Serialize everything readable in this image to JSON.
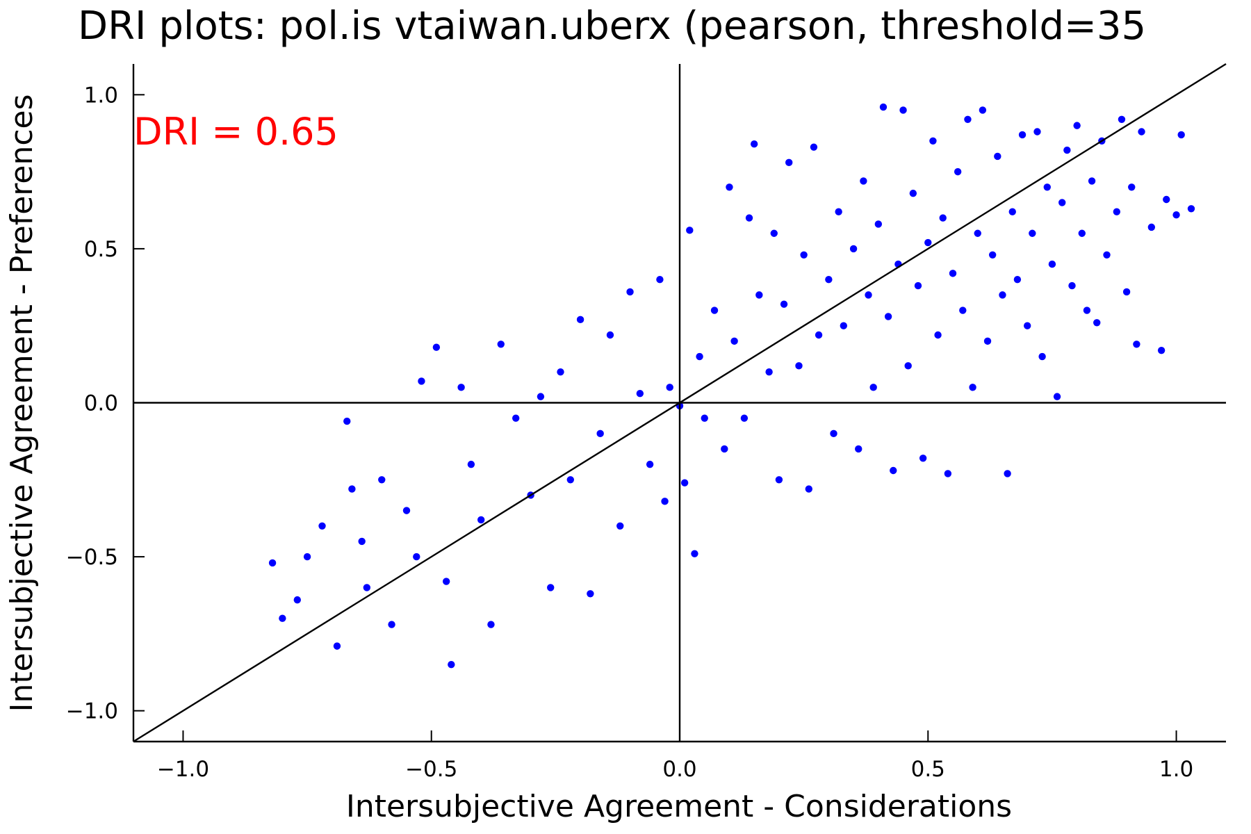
{
  "chart_data": {
    "type": "scatter",
    "title": "DRI plots: pol.is vtaiwan.uberx (pearson, threshold=35",
    "xlabel": "Intersubjective Agreement - Considerations",
    "ylabel": "Intersubjective Agreement - Preferences",
    "xlim": [
      -1.1,
      1.1
    ],
    "ylim": [
      -1.1,
      1.1
    ],
    "xticks": [
      -1.0,
      -0.5,
      0.0,
      0.5,
      1.0
    ],
    "yticks": [
      -1.0,
      -0.5,
      0.0,
      0.5,
      1.0
    ],
    "xtick_labels": [
      "−1.0",
      "−0.5",
      "0.0",
      "0.5",
      "1.0"
    ],
    "ytick_labels": [
      "−1.0",
      "−0.5",
      "0.0",
      "0.5",
      "1.0"
    ],
    "grid": false,
    "annotation": {
      "text": "DRI = 0.65",
      "x": -1.1,
      "y": 0.87,
      "color": "#ff0000"
    },
    "reference_lines": {
      "diagonal_y_equals_x": true,
      "x_zero_axis": true,
      "y_zero_axis": true
    },
    "series": [
      {
        "color": "#0000ff",
        "points": [
          [
            -0.82,
            -0.52
          ],
          [
            -0.8,
            -0.7
          ],
          [
            -0.77,
            -0.64
          ],
          [
            -0.75,
            -0.5
          ],
          [
            -0.72,
            -0.4
          ],
          [
            -0.69,
            -0.79
          ],
          [
            -0.67,
            -0.06
          ],
          [
            -0.66,
            -0.28
          ],
          [
            -0.64,
            -0.45
          ],
          [
            -0.63,
            -0.6
          ],
          [
            -0.6,
            -0.25
          ],
          [
            -0.58,
            -0.72
          ],
          [
            -0.55,
            -0.35
          ],
          [
            -0.53,
            -0.5
          ],
          [
            -0.52,
            0.07
          ],
          [
            -0.49,
            0.18
          ],
          [
            -0.47,
            -0.58
          ],
          [
            -0.46,
            -0.85
          ],
          [
            -0.44,
            0.05
          ],
          [
            -0.42,
            -0.2
          ],
          [
            -0.4,
            -0.38
          ],
          [
            -0.38,
            -0.72
          ],
          [
            -0.36,
            0.19
          ],
          [
            -0.33,
            -0.05
          ],
          [
            -0.3,
            -0.3
          ],
          [
            -0.28,
            0.02
          ],
          [
            -0.26,
            -0.6
          ],
          [
            -0.24,
            0.1
          ],
          [
            -0.22,
            -0.25
          ],
          [
            -0.2,
            0.27
          ],
          [
            -0.18,
            -0.62
          ],
          [
            -0.16,
            -0.1
          ],
          [
            -0.14,
            0.22
          ],
          [
            -0.12,
            -0.4
          ],
          [
            -0.1,
            0.36
          ],
          [
            -0.08,
            0.03
          ],
          [
            -0.06,
            -0.2
          ],
          [
            -0.04,
            0.4
          ],
          [
            -0.03,
            -0.32
          ],
          [
            -0.02,
            0.05
          ],
          [
            0.0,
            -0.01
          ],
          [
            0.01,
            -0.26
          ],
          [
            0.02,
            0.56
          ],
          [
            0.03,
            -0.49
          ],
          [
            0.04,
            0.15
          ],
          [
            0.05,
            -0.05
          ],
          [
            0.07,
            0.3
          ],
          [
            0.09,
            -0.15
          ],
          [
            0.1,
            0.7
          ],
          [
            0.11,
            0.2
          ],
          [
            0.13,
            -0.05
          ],
          [
            0.14,
            0.6
          ],
          [
            0.15,
            0.84
          ],
          [
            0.16,
            0.35
          ],
          [
            0.18,
            0.1
          ],
          [
            0.19,
            0.55
          ],
          [
            0.2,
            -0.25
          ],
          [
            0.21,
            0.32
          ],
          [
            0.22,
            0.78
          ],
          [
            0.24,
            0.12
          ],
          [
            0.25,
            0.48
          ],
          [
            0.26,
            -0.28
          ],
          [
            0.27,
            0.83
          ],
          [
            0.28,
            0.22
          ],
          [
            0.3,
            0.4
          ],
          [
            0.31,
            -0.1
          ],
          [
            0.32,
            0.62
          ],
          [
            0.33,
            0.25
          ],
          [
            0.35,
            0.5
          ],
          [
            0.36,
            -0.15
          ],
          [
            0.37,
            0.72
          ],
          [
            0.38,
            0.35
          ],
          [
            0.39,
            0.05
          ],
          [
            0.4,
            0.58
          ],
          [
            0.41,
            0.96
          ],
          [
            0.42,
            0.28
          ],
          [
            0.43,
            -0.22
          ],
          [
            0.44,
            0.45
          ],
          [
            0.45,
            0.95
          ],
          [
            0.46,
            0.12
          ],
          [
            0.47,
            0.68
          ],
          [
            0.48,
            0.38
          ],
          [
            0.49,
            -0.18
          ],
          [
            0.5,
            0.52
          ],
          [
            0.51,
            0.85
          ],
          [
            0.52,
            0.22
          ],
          [
            0.53,
            0.6
          ],
          [
            0.54,
            -0.23
          ],
          [
            0.55,
            0.42
          ],
          [
            0.56,
            0.75
          ],
          [
            0.57,
            0.3
          ],
          [
            0.58,
            0.92
          ],
          [
            0.59,
            0.05
          ],
          [
            0.6,
            0.55
          ],
          [
            0.61,
            0.95
          ],
          [
            0.62,
            0.2
          ],
          [
            0.63,
            0.48
          ],
          [
            0.64,
            0.8
          ],
          [
            0.65,
            0.35
          ],
          [
            0.66,
            -0.23
          ],
          [
            0.67,
            0.62
          ],
          [
            0.68,
            0.4
          ],
          [
            0.69,
            0.87
          ],
          [
            0.7,
            0.25
          ],
          [
            0.71,
            0.55
          ],
          [
            0.72,
            0.88
          ],
          [
            0.73,
            0.15
          ],
          [
            0.74,
            0.7
          ],
          [
            0.75,
            0.45
          ],
          [
            0.76,
            0.02
          ],
          [
            0.77,
            0.65
          ],
          [
            0.78,
            0.82
          ],
          [
            0.79,
            0.38
          ],
          [
            0.8,
            0.9
          ],
          [
            0.81,
            0.55
          ],
          [
            0.82,
            0.3
          ],
          [
            0.83,
            0.72
          ],
          [
            0.84,
            0.26
          ],
          [
            0.85,
            0.85
          ],
          [
            0.86,
            0.48
          ],
          [
            0.88,
            0.62
          ],
          [
            0.89,
            0.92
          ],
          [
            0.9,
            0.36
          ],
          [
            0.91,
            0.7
          ],
          [
            0.92,
            0.19
          ],
          [
            0.93,
            0.88
          ],
          [
            0.95,
            0.57
          ],
          [
            0.97,
            0.17
          ],
          [
            0.98,
            0.66
          ],
          [
            1.0,
            0.61
          ],
          [
            1.01,
            0.87
          ],
          [
            1.03,
            0.63
          ]
        ]
      }
    ]
  }
}
